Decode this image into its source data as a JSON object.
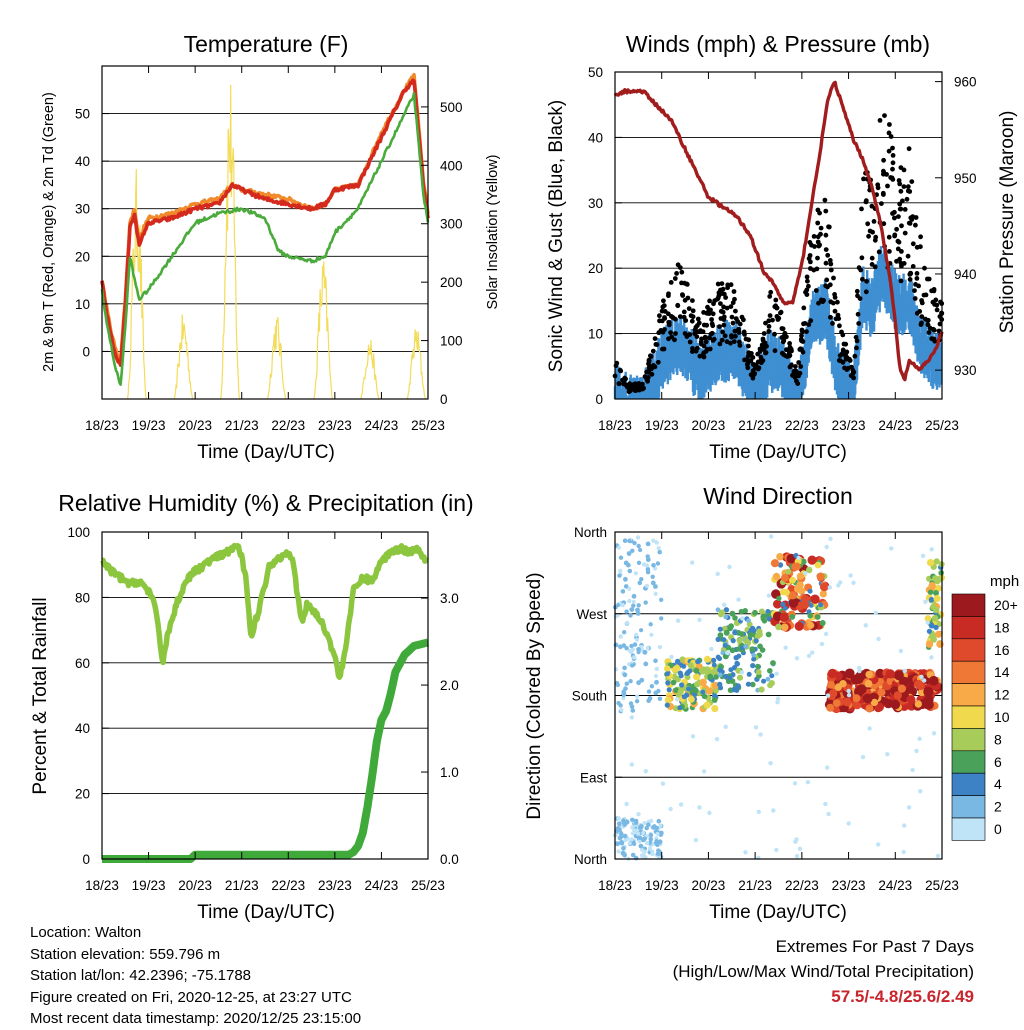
{
  "colors": {
    "temp_2m": "#d42a1e",
    "temp_9m": "#f08a2a",
    "dewpoint": "#4aab3c",
    "solar": "#f3dc5a",
    "wind": "#3f8fd2",
    "gust": "#000000",
    "pressure": "#a11d1d",
    "rh": "#8cc63f",
    "precip": "#3faa3a",
    "grid": "#000000",
    "highlight": "#c8252c"
  },
  "x_ticks": [
    "18/23",
    "19/23",
    "20/23",
    "21/23",
    "22/23",
    "23/23",
    "24/23",
    "25/23"
  ],
  "info": {
    "location": "Location: Walton",
    "elevation": "Station elevation: 559.796 m",
    "latlon": "Station lat/lon: 42.2396; -75.1788",
    "created": "Figure created on Fri, 2020-12-25, at 23:27 UTC",
    "recent": "Most recent data timestamp: 2020/12/25 23:15:00"
  },
  "extremes": {
    "title": "Extremes For Past 7 Days",
    "subtitle": "(High/Low/Max Wind/Total Precipitation)",
    "values": "57.5/-4.8/25.6/2.49"
  },
  "chart_data": [
    {
      "type": "line",
      "title": "Temperature (F)",
      "xlabel": "Time (Day/UTC)",
      "ylabel": "2m & 9m T (Red, Orange) & 2m Td (Green)",
      "y2label": "Solar Insolation (Yellow)",
      "xlim": [
        0,
        7
      ],
      "ylim": [
        -10,
        60
      ],
      "y2lim": [
        0,
        570
      ],
      "yticks": [
        0,
        10,
        20,
        30,
        40,
        50
      ],
      "y2ticks": [
        0,
        100,
        200,
        300,
        400,
        500
      ],
      "series": [
        {
          "name": "2m T",
          "color": "#d42a1e",
          "x": [
            0,
            0.1,
            0.2,
            0.3,
            0.4,
            0.5,
            0.6,
            0.7,
            0.8,
            0.9,
            1.0,
            1.5,
            2.0,
            2.5,
            2.8,
            3.0,
            3.5,
            4.0,
            4.5,
            4.8,
            5.0,
            5.5,
            6.0,
            6.5,
            6.7,
            6.9,
            7.0
          ],
          "y": [
            15,
            8,
            3,
            -1,
            -3,
            10,
            26,
            29,
            22,
            25,
            27,
            28,
            30,
            31,
            35,
            34,
            32,
            31,
            30,
            31,
            34,
            35,
            45,
            55,
            57,
            35,
            28
          ]
        },
        {
          "name": "9m T",
          "color": "#f08a2a",
          "x": [
            0,
            0.1,
            0.2,
            0.3,
            0.4,
            0.5,
            0.6,
            0.7,
            0.8,
            0.9,
            1.0,
            1.5,
            2.0,
            2.5,
            2.8,
            3.0,
            3.5,
            4.0,
            4.5,
            4.8,
            5.0,
            5.5,
            6.0,
            6.5,
            6.7,
            6.9,
            7.0
          ],
          "y": [
            15,
            9,
            4,
            0,
            -2,
            11,
            27,
            30,
            23,
            26,
            28,
            29,
            31,
            32,
            35,
            34,
            33,
            32,
            30,
            31,
            34,
            35,
            46,
            55,
            58,
            36,
            29
          ]
        },
        {
          "name": "2m Td",
          "color": "#4aab3c",
          "x": [
            0,
            0.1,
            0.2,
            0.3,
            0.4,
            0.5,
            0.6,
            0.7,
            0.8,
            1.0,
            1.5,
            2.0,
            2.5,
            3.0,
            3.5,
            3.8,
            4.0,
            4.5,
            4.8,
            5.0,
            5.5,
            6.0,
            6.5,
            6.7,
            6.9,
            7.0
          ],
          "y": [
            13,
            6,
            1,
            -4,
            -7,
            5,
            20,
            15,
            11,
            13,
            20,
            27,
            29,
            30,
            28,
            21,
            20,
            19,
            20,
            25,
            30,
            40,
            50,
            54,
            33,
            27
          ]
        },
        {
          "name": "Solar Insolation",
          "color": "#f3dc5a",
          "axis": "y2",
          "peaks": [
            [
              0.75,
              400
            ],
            [
              1.75,
              150
            ],
            [
              2.75,
              570
            ],
            [
              3.75,
              150
            ],
            [
              4.75,
              250
            ],
            [
              5.75,
              110
            ],
            [
              6.75,
              130
            ]
          ]
        }
      ]
    },
    {
      "type": "scatter",
      "title": "Winds (mph) & Pressure (mb)",
      "xlabel": "Time (Day/UTC)",
      "ylabel": "Sonic Wind & Gust (Blue, Black)",
      "y2label": "Station Pressure (Maroon)",
      "xlim": [
        0,
        7
      ],
      "ylim": [
        0,
        50
      ],
      "y2lim": [
        927,
        961
      ],
      "yticks": [
        0,
        10,
        20,
        30,
        40,
        50
      ],
      "y2ticks": [
        930,
        940,
        950,
        960
      ],
      "series": [
        {
          "name": "Pressure",
          "color": "#a11d1d",
          "axis": "y2",
          "x": [
            0,
            0.2,
            0.4,
            0.6,
            0.8,
            1.0,
            1.2,
            1.5,
            1.8,
            2.0,
            2.3,
            2.6,
            2.9,
            3.2,
            3.4,
            3.6,
            3.8,
            4.0,
            4.2,
            4.4,
            4.55,
            4.7,
            4.9,
            5.1,
            5.3,
            5.5,
            5.7,
            5.9,
            6.0,
            6.1,
            6.2,
            6.3,
            6.5,
            6.7,
            6.85,
            7.0
          ],
          "y": [
            958.5,
            959,
            959,
            959,
            958,
            957,
            956,
            953,
            950,
            948,
            947,
            946,
            944,
            940,
            939,
            937,
            937,
            941,
            947,
            953,
            958,
            960,
            957,
            954,
            952,
            949,
            945,
            939,
            935,
            930,
            929,
            931,
            930,
            931,
            932,
            934
          ]
        },
        {
          "name": "Wind",
          "color": "#3f8fd2",
          "x": [
            0,
            0.3,
            0.6,
            1.0,
            1.4,
            1.8,
            2.2,
            2.6,
            3.0,
            3.3,
            3.6,
            3.9,
            4.2,
            4.5,
            4.8,
            5.1,
            5.3,
            5.5,
            5.7,
            5.9,
            6.1,
            6.3,
            6.5,
            6.7,
            7.0
          ],
          "y": [
            3,
            1,
            1,
            8,
            11,
            6,
            9,
            10,
            2,
            8,
            7,
            1,
            14,
            16,
            5,
            2,
            18,
            16,
            21,
            19,
            16,
            17,
            11,
            9,
            7
          ]
        },
        {
          "name": "Gust",
          "color": "#000000",
          "x": [
            0,
            0.3,
            0.6,
            1.0,
            1.4,
            1.8,
            2.2,
            2.6,
            3.0,
            3.3,
            3.6,
            3.9,
            4.2,
            4.5,
            4.8,
            5.1,
            5.3,
            5.5,
            5.7,
            5.9,
            6.1,
            6.3,
            6.5,
            6.7,
            7.0
          ],
          "y": [
            5,
            2,
            2,
            12,
            18,
            10,
            15,
            15,
            4,
            14,
            12,
            3,
            22,
            28,
            10,
            4,
            30,
            28,
            38,
            35,
            30,
            32,
            22,
            16,
            13
          ]
        }
      ]
    },
    {
      "type": "line",
      "title": "Relative Humidity (%) & Precipitation (in)",
      "xlabel": "Time (Day/UTC)",
      "ylabel": "Percent & Total Rainfall",
      "xlim": [
        0,
        7
      ],
      "ylim": [
        0,
        100
      ],
      "y2lim": [
        0,
        3.76
      ],
      "yticks": [
        0,
        20,
        40,
        60,
        80,
        100
      ],
      "y2ticks": [
        "0.0",
        "1.0",
        "2.0",
        "3.0"
      ],
      "series": [
        {
          "name": "RH",
          "color": "#8cc63f",
          "x": [
            0,
            0.2,
            0.4,
            0.6,
            0.8,
            1.0,
            1.1,
            1.2,
            1.3,
            1.4,
            1.6,
            1.8,
            2.0,
            2.2,
            2.4,
            2.6,
            2.8,
            2.9,
            3.0,
            3.1,
            3.2,
            3.4,
            3.6,
            3.8,
            4.0,
            4.1,
            4.2,
            4.3,
            4.4,
            4.6,
            4.8,
            5.0,
            5.1,
            5.2,
            5.3,
            5.4,
            5.6,
            5.8,
            6.0,
            6.2,
            6.4,
            6.6,
            6.8,
            6.9,
            7.0
          ],
          "y": [
            91,
            88,
            86,
            84,
            85,
            82,
            79,
            72,
            60,
            68,
            78,
            85,
            88,
            90,
            92,
            93,
            95,
            96,
            92,
            85,
            68,
            78,
            90,
            92,
            94,
            92,
            80,
            72,
            78,
            75,
            70,
            62,
            55,
            62,
            72,
            82,
            86,
            85,
            91,
            94,
            95,
            94,
            95,
            92,
            92
          ]
        },
        {
          "name": "Precipitation",
          "color": "#3faa3a",
          "axis": "y2",
          "x": [
            0,
            1.0,
            1.9,
            2.0,
            4.0,
            5.3,
            5.4,
            5.5,
            5.6,
            5.7,
            5.8,
            5.9,
            6.0,
            6.1,
            6.2,
            6.3,
            6.5,
            6.7,
            7.0
          ],
          "y": [
            0.0,
            0.0,
            0.0,
            0.05,
            0.05,
            0.05,
            0.08,
            0.15,
            0.3,
            0.6,
            0.95,
            1.35,
            1.6,
            1.7,
            1.9,
            2.15,
            2.35,
            2.45,
            2.49
          ]
        }
      ]
    },
    {
      "type": "scatter",
      "title": "Wind Direction",
      "xlabel": "Time (Day/UTC)",
      "ylabel": "Direction (Colored By Speed)",
      "xlim": [
        0,
        7
      ],
      "y_categories": [
        "North",
        "East",
        "South",
        "West",
        "North"
      ],
      "colorbar": {
        "title": "mph",
        "labels": [
          "20+",
          "18",
          "16",
          "14",
          "12",
          "10",
          "8",
          "6",
          "4",
          "2",
          "0"
        ],
        "colors": [
          "#9c1a1e",
          "#c82a24",
          "#e04a2c",
          "#f07836",
          "#f8aa48",
          "#f1d94e",
          "#a8cc5a",
          "#4aa25a",
          "#3d82c4",
          "#7ab8e4",
          "#bfe3f7"
        ]
      },
      "clusters": [
        {
          "x": [
            0,
            1.0
          ],
          "dir": [
            0,
            45
          ],
          "speed": [
            0,
            3
          ]
        },
        {
          "x": [
            0,
            1.0
          ],
          "dir": [
            160,
            355
          ],
          "speed": [
            0,
            3
          ]
        },
        {
          "x": [
            1.1,
            2.2
          ],
          "dir": [
            165,
            220
          ],
          "speed": [
            3,
            12
          ]
        },
        {
          "x": [
            2.2,
            3.4
          ],
          "dir": [
            185,
            275
          ],
          "speed": [
            2,
            8
          ]
        },
        {
          "x": [
            3.4,
            4.5
          ],
          "dir": [
            255,
            335
          ],
          "speed": [
            3,
            20
          ]
        },
        {
          "x": [
            4.6,
            6.9
          ],
          "dir": [
            165,
            205
          ],
          "speed": [
            12,
            22
          ]
        },
        {
          "x": [
            6.7,
            7.0
          ],
          "dir": [
            230,
            330
          ],
          "speed": [
            4,
            12
          ]
        }
      ]
    }
  ]
}
